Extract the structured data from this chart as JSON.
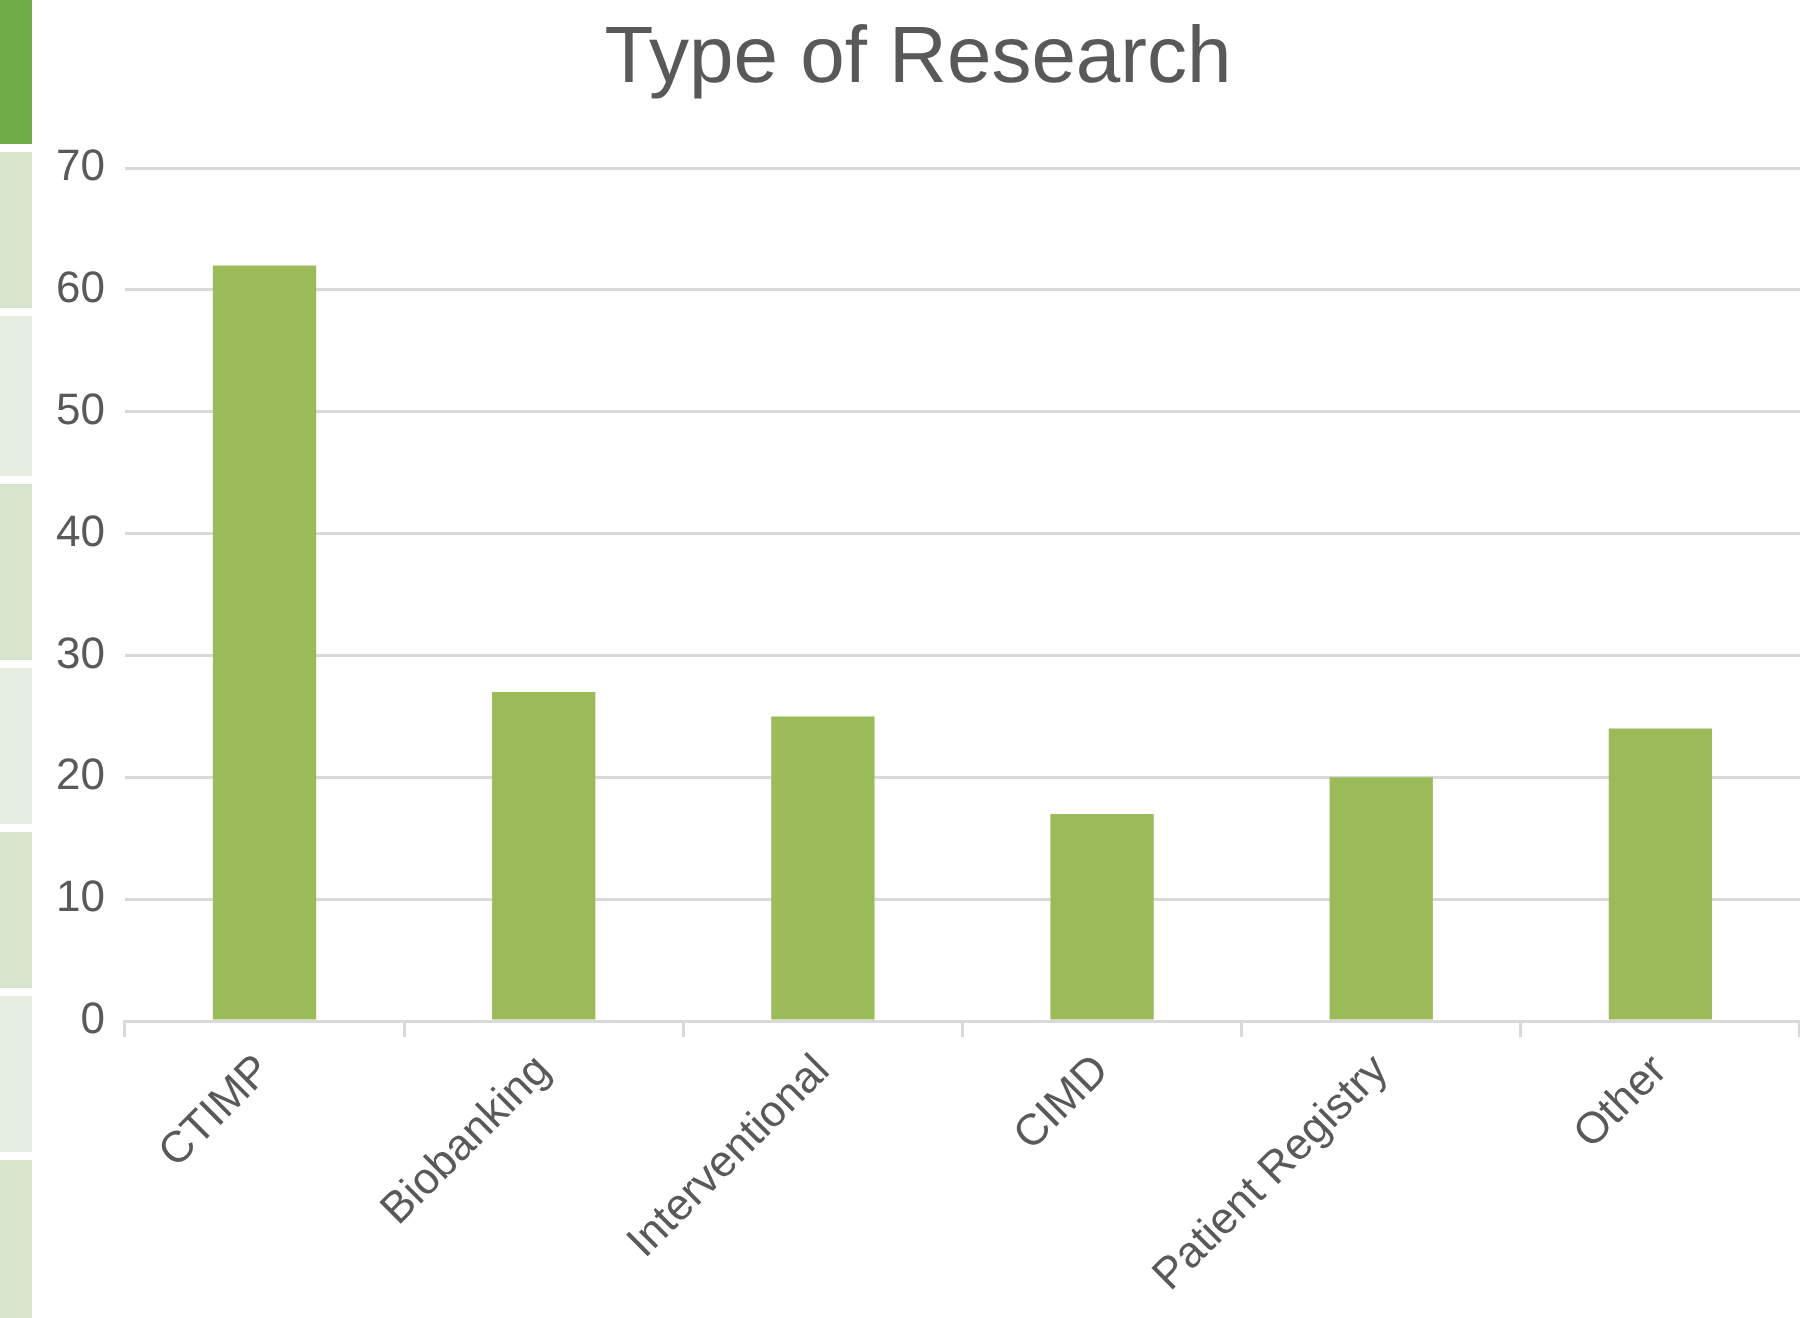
{
  "chart_data": {
    "type": "bar",
    "title": "Type of Research",
    "categories": [
      "CTIMP",
      "Biobanking",
      "Interventional",
      "CIMD",
      "Patient Registry",
      "Other"
    ],
    "values": [
      62,
      27,
      25,
      17,
      20,
      24
    ],
    "color": "#9bbb59",
    "ylim": [
      0,
      70
    ],
    "yticks": [
      0,
      10,
      20,
      30,
      40,
      50,
      60,
      70
    ],
    "grid": "y",
    "legend": false
  }
}
